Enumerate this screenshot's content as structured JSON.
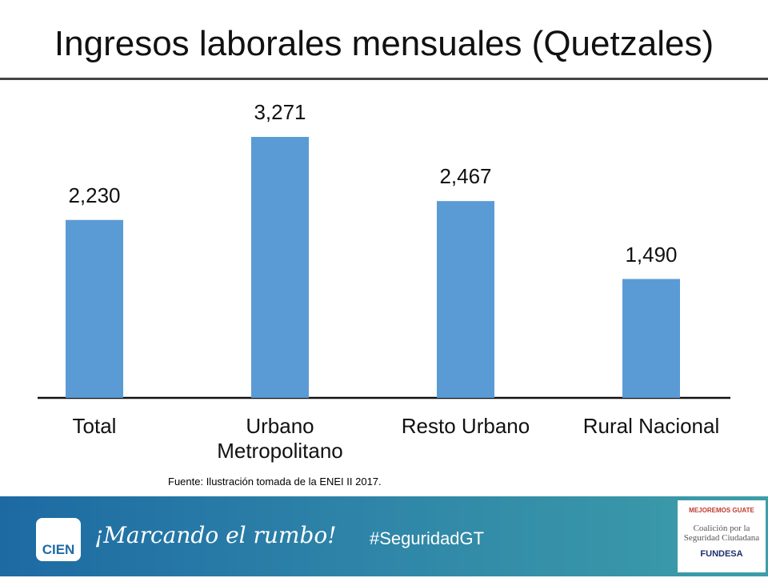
{
  "title": "Ingresos laborales mensuales (Quetzales)",
  "chart_data": {
    "type": "bar",
    "categories": [
      "Total",
      "Urbano Metropolitano",
      "Resto Urbano",
      "Rural Nacional"
    ],
    "values": [
      2230,
      3271,
      2467,
      1490
    ],
    "value_labels": [
      "2,230",
      "3,271",
      "2,467",
      "1,490"
    ],
    "color": "#5b9bd5"
  },
  "source": "Fuente: Ilustración tomada de la ENEI II 2017.",
  "footer": {
    "slogan": "¡Marcando el rumbo!",
    "hashtag": "#SeguridadGT",
    "logo_left": "CIEN",
    "logo_right": {
      "top": "MEJOREMOS GUATE",
      "middle": "Coalición por la Seguridad Ciudadana",
      "bottom": "FUNDESA"
    }
  }
}
